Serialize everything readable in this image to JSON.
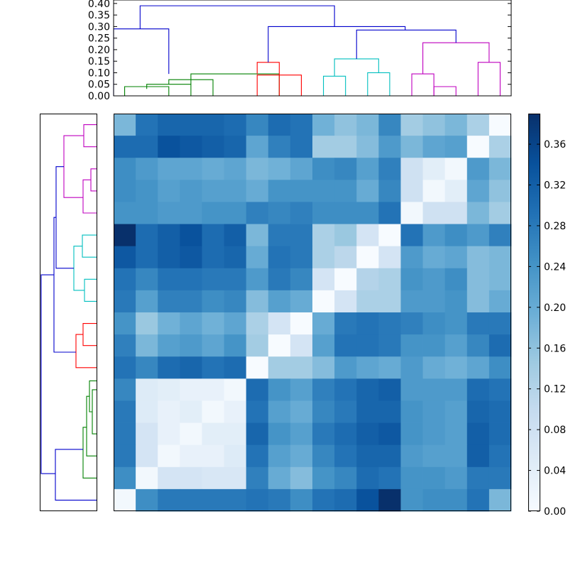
{
  "chart_data": {
    "type": "heatmap",
    "title": "",
    "xlabel": "",
    "ylabel": "",
    "n": 18,
    "dendrogram_top": {
      "yticks": [
        "0.00",
        "0.05",
        "0.10",
        "0.15",
        "0.20",
        "0.25",
        "0.30",
        "0.35",
        "0.40"
      ],
      "ylim": [
        0,
        0.4
      ],
      "links": [
        {
          "x": [
            0.5,
            0.5,
            2.5,
            2.5
          ],
          "y": [
            0,
            0.04,
            0.04,
            0
          ],
          "color": "#008000"
        },
        {
          "x": [
            3.5,
            3.5,
            1.5,
            1.5
          ],
          "y": [
            0,
            0.05,
            0.05,
            0.03
          ],
          "color": "#008000"
        },
        {
          "x": [
            4.5,
            4.5,
            2.5,
            2.5
          ],
          "y": [
            0,
            0.07,
            0.07,
            0.05
          ],
          "color": "#008000"
        },
        {
          "x": [
            3.5,
            3.5,
            7.5,
            7.5
          ],
          "y": [
            0.05,
            0.095,
            0.095,
            0
          ],
          "color": "#008000"
        },
        {
          "x": [
            0,
            0,
            2.5,
            2.5
          ],
          "y": [
            0,
            0.29,
            0.29,
            0.095
          ],
          "color": "#0000cc"
        },
        {
          "x": [
            6.5,
            6.5,
            7.5,
            7.5
          ],
          "y": [
            0.095,
            0.145,
            0.145,
            0
          ],
          "color": "#ff0000"
        },
        {
          "x": [
            6.5,
            6.5,
            8.5,
            8.5
          ],
          "y": [
            0,
            0.09,
            0.09,
            0
          ],
          "color": "#ff0000"
        },
        {
          "x": [
            9.5,
            9.5,
            10.5,
            10.5
          ],
          "y": [
            0,
            0.085,
            0.085,
            0
          ],
          "color": "#00bfbf"
        },
        {
          "x": [
            11.5,
            11.5,
            12.5,
            12.5
          ],
          "y": [
            0,
            0.1,
            0.1,
            0
          ],
          "color": "#00bfbf"
        },
        {
          "x": [
            10,
            10,
            12,
            12
          ],
          "y": [
            0.085,
            0.16,
            0.16,
            0.1
          ],
          "color": "#00bfbf"
        },
        {
          "x": [
            13.5,
            13.5,
            14.5,
            14.5
          ],
          "y": [
            0,
            0.095,
            0.095,
            0
          ],
          "color": "#bf00bf"
        },
        {
          "x": [
            14.5,
            14.5,
            15.5,
            15.5
          ],
          "y": [
            0,
            0.04,
            0.04,
            0
          ],
          "color": "#bf00bf"
        },
        {
          "x": [
            16.5,
            16.5,
            17.5,
            17.5
          ],
          "y": [
            0,
            0.145,
            0.145,
            0
          ],
          "color": "#bf00bf"
        },
        {
          "x": [
            14,
            14,
            17,
            17
          ],
          "y": [
            0.095,
            0.23,
            0.23,
            0.145
          ],
          "color": "#bf00bf"
        },
        {
          "x": [
            11,
            11,
            15.5,
            15.5
          ],
          "y": [
            0.16,
            0.285,
            0.285,
            0.23
          ],
          "color": "#0000cc"
        },
        {
          "x": [
            7,
            7,
            13.2,
            13.2
          ],
          "y": [
            0.145,
            0.3,
            0.3,
            0.285
          ],
          "color": "#0000cc"
        },
        {
          "x": [
            1.2,
            1.2,
            10,
            10
          ],
          "y": [
            0.29,
            0.39,
            0.39,
            0.3
          ],
          "color": "#0000cc"
        }
      ]
    },
    "dendrogram_left": {
      "links": [
        {
          "x": [
            0,
            0.09,
            0.09,
            0
          ],
          "y": [
            0.5,
            0.5,
            1.5,
            1.5
          ],
          "color": "#bf00bf"
        },
        {
          "x": [
            0,
            0.04,
            0.04,
            0
          ],
          "y": [
            2.5,
            2.5,
            3.5,
            3.5
          ],
          "color": "#bf00bf"
        },
        {
          "x": [
            0.04,
            0.095,
            0.095,
            0
          ],
          "y": [
            3,
            3,
            4.5,
            4.5
          ],
          "color": "#bf00bf"
        },
        {
          "x": [
            0.09,
            0.23,
            0.23,
            0.095
          ],
          "y": [
            1,
            1,
            3.8,
            3.8
          ],
          "color": "#bf00bf"
        },
        {
          "x": [
            0,
            0.1,
            0.1,
            0
          ],
          "y": [
            5.5,
            5.5,
            6.5,
            6.5
          ],
          "color": "#00bfbf"
        },
        {
          "x": [
            0,
            0.085,
            0.085,
            0
          ],
          "y": [
            7.5,
            7.5,
            8.5,
            8.5
          ],
          "color": "#00bfbf"
        },
        {
          "x": [
            0.1,
            0.16,
            0.16,
            0.085
          ],
          "y": [
            6,
            6,
            8,
            8
          ],
          "color": "#00bfbf"
        },
        {
          "x": [
            0.23,
            0.285,
            0.285,
            0.16
          ],
          "y": [
            2.4,
            2.4,
            7,
            7
          ],
          "color": "#0000cc"
        },
        {
          "x": [
            0,
            0.095,
            0.095,
            0
          ],
          "y": [
            9.5,
            9.5,
            10.5,
            10.5
          ],
          "color": "#ff0000"
        },
        {
          "x": [
            0.095,
            0.145,
            0.145,
            0
          ],
          "y": [
            10,
            10,
            11.5,
            11.5
          ],
          "color": "#ff0000"
        },
        {
          "x": [
            0.285,
            0.3,
            0.3,
            0.145
          ],
          "y": [
            4.7,
            4.7,
            10.8,
            10.8
          ],
          "color": "#0000cc"
        },
        {
          "x": [
            0,
            0.03,
            0.03,
            0
          ],
          "y": [
            12.5,
            12.5,
            14.5,
            14.5
          ],
          "color": "#008000"
        },
        {
          "x": [
            0,
            0.05,
            0.05,
            0.03
          ],
          "y": [
            12.1,
            12.1,
            13.5,
            13.5
          ],
          "color": "#008000"
        },
        {
          "x": [
            0.05,
            0.07,
            0.07,
            0
          ],
          "y": [
            12.8,
            12.8,
            15.5,
            15.5
          ],
          "color": "#008000"
        },
        {
          "x": [
            0.07,
            0.095,
            0.095,
            0
          ],
          "y": [
            14.2,
            14.2,
            16.5,
            16.5
          ],
          "color": "#008000"
        },
        {
          "x": [
            0.095,
            0.29,
            0.29,
            0
          ],
          "y": [
            15.2,
            15.2,
            17.5,
            17.5
          ],
          "color": "#0000cc"
        },
        {
          "x": [
            0.3,
            0.39,
            0.39,
            0.29
          ],
          "y": [
            7.3,
            7.3,
            16.3,
            16.3
          ],
          "color": "#0000cc"
        }
      ]
    },
    "colorbar": {
      "ticks": [
        "0.00",
        "0.04",
        "0.08",
        "0.12",
        "0.16",
        "0.20",
        "0.24",
        "0.28",
        "0.32",
        "0.36"
      ],
      "vmin": 0,
      "vmax": 0.39,
      "colormap": "Blues"
    },
    "matrix": [
      [
        0.18,
        0.29,
        0.31,
        0.31,
        0.31,
        0.3,
        0.26,
        0.3,
        0.29,
        0.19,
        0.16,
        0.18,
        0.26,
        0.14,
        0.16,
        0.18,
        0.13,
        0.0
      ],
      [
        0.3,
        0.3,
        0.34,
        0.33,
        0.32,
        0.31,
        0.21,
        0.27,
        0.29,
        0.14,
        0.14,
        0.17,
        0.23,
        0.18,
        0.21,
        0.22,
        0.0,
        0.13
      ],
      [
        0.25,
        0.23,
        0.21,
        0.21,
        0.2,
        0.21,
        0.18,
        0.19,
        0.21,
        0.25,
        0.26,
        0.22,
        0.27,
        0.08,
        0.04,
        0.01,
        0.23,
        0.18
      ],
      [
        0.25,
        0.24,
        0.22,
        0.23,
        0.22,
        0.22,
        0.2,
        0.24,
        0.24,
        0.24,
        0.24,
        0.2,
        0.26,
        0.08,
        0.01,
        0.04,
        0.21,
        0.16
      ],
      [
        0.24,
        0.24,
        0.23,
        0.23,
        0.24,
        0.24,
        0.27,
        0.26,
        0.27,
        0.25,
        0.25,
        0.25,
        0.29,
        0.01,
        0.08,
        0.08,
        0.18,
        0.14
      ],
      [
        0.39,
        0.3,
        0.32,
        0.34,
        0.3,
        0.32,
        0.18,
        0.28,
        0.28,
        0.13,
        0.15,
        0.07,
        0.0,
        0.29,
        0.23,
        0.25,
        0.23,
        0.27
      ],
      [
        0.33,
        0.3,
        0.32,
        0.33,
        0.3,
        0.31,
        0.2,
        0.29,
        0.28,
        0.13,
        0.11,
        0.0,
        0.07,
        0.23,
        0.2,
        0.21,
        0.17,
        0.18
      ],
      [
        0.29,
        0.26,
        0.29,
        0.29,
        0.28,
        0.28,
        0.23,
        0.28,
        0.26,
        0.07,
        0.0,
        0.12,
        0.13,
        0.24,
        0.23,
        0.25,
        0.17,
        0.18
      ],
      [
        0.28,
        0.22,
        0.27,
        0.27,
        0.25,
        0.26,
        0.17,
        0.22,
        0.2,
        0.0,
        0.07,
        0.13,
        0.13,
        0.23,
        0.23,
        0.24,
        0.17,
        0.2
      ],
      [
        0.24,
        0.15,
        0.19,
        0.21,
        0.19,
        0.21,
        0.13,
        0.07,
        0.0,
        0.2,
        0.28,
        0.29,
        0.28,
        0.27,
        0.25,
        0.24,
        0.28,
        0.28
      ],
      [
        0.27,
        0.18,
        0.22,
        0.23,
        0.21,
        0.24,
        0.14,
        0.0,
        0.07,
        0.22,
        0.29,
        0.29,
        0.28,
        0.24,
        0.24,
        0.22,
        0.26,
        0.3
      ],
      [
        0.29,
        0.26,
        0.3,
        0.31,
        0.29,
        0.3,
        0.0,
        0.14,
        0.14,
        0.17,
        0.23,
        0.21,
        0.2,
        0.23,
        0.2,
        0.19,
        0.21,
        0.25
      ],
      [
        0.26,
        0.05,
        0.04,
        0.03,
        0.03,
        0.01,
        0.3,
        0.24,
        0.22,
        0.27,
        0.29,
        0.31,
        0.32,
        0.23,
        0.23,
        0.23,
        0.3,
        0.29
      ],
      [
        0.28,
        0.05,
        0.03,
        0.04,
        0.01,
        0.03,
        0.29,
        0.22,
        0.2,
        0.26,
        0.28,
        0.31,
        0.31,
        0.24,
        0.23,
        0.22,
        0.31,
        0.3
      ],
      [
        0.28,
        0.07,
        0.03,
        0.01,
        0.04,
        0.04,
        0.31,
        0.24,
        0.22,
        0.28,
        0.3,
        0.32,
        0.33,
        0.24,
        0.23,
        0.22,
        0.32,
        0.3
      ],
      [
        0.28,
        0.07,
        0.01,
        0.03,
        0.03,
        0.05,
        0.29,
        0.22,
        0.2,
        0.26,
        0.29,
        0.31,
        0.31,
        0.23,
        0.22,
        0.22,
        0.32,
        0.29
      ],
      [
        0.25,
        0.01,
        0.07,
        0.07,
        0.06,
        0.06,
        0.27,
        0.2,
        0.17,
        0.24,
        0.26,
        0.3,
        0.29,
        0.24,
        0.24,
        0.23,
        0.28,
        0.28
      ],
      [
        0.01,
        0.25,
        0.28,
        0.28,
        0.28,
        0.28,
        0.29,
        0.28,
        0.25,
        0.29,
        0.3,
        0.34,
        0.39,
        0.24,
        0.25,
        0.25,
        0.29,
        0.18
      ]
    ]
  }
}
